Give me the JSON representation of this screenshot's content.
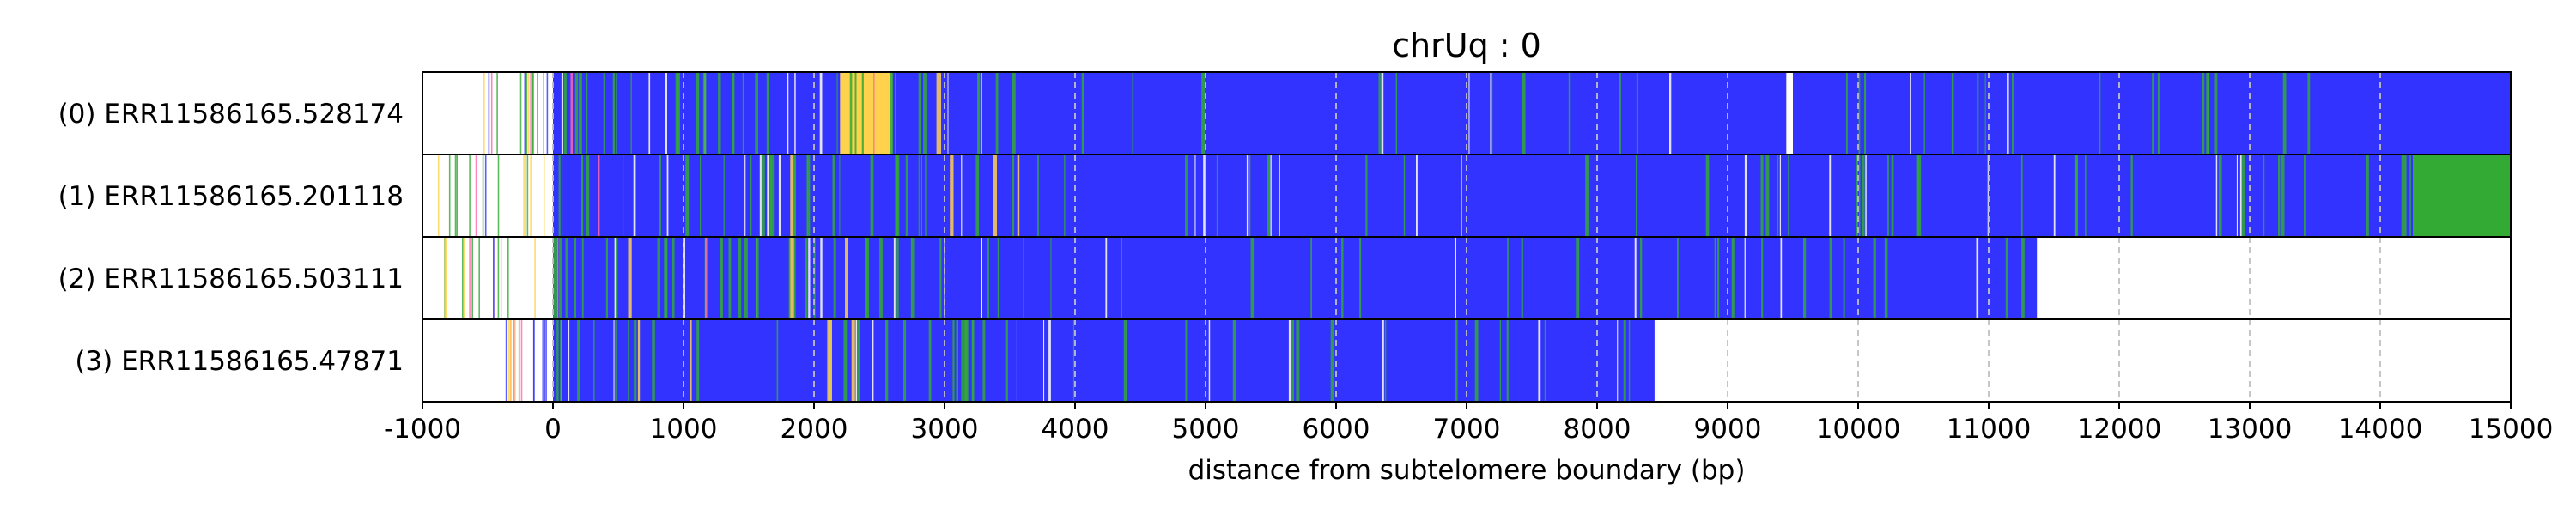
{
  "chart_data": {
    "type": "heatmap",
    "title": "chrUq : 0",
    "xlabel": "distance from subtelomere boundary (bp)",
    "ylabel": "",
    "xlim": [
      -1000,
      15000
    ],
    "grid": "vertical dashed lines at each x tick",
    "x_ticks": [
      -1000,
      0,
      1000,
      2000,
      3000,
      4000,
      5000,
      6000,
      7000,
      8000,
      9000,
      10000,
      11000,
      12000,
      13000,
      14000,
      15000
    ],
    "x_tick_labels": [
      "-1000",
      "0",
      "1000",
      "2000",
      "3000",
      "4000",
      "5000",
      "6000",
      "7000",
      "8000",
      "9000",
      "10000",
      "11000",
      "12000",
      "13000",
      "14000",
      "15000"
    ],
    "colors": {
      "telomeric_repeat": "#3333ff",
      "variant_repeat": "#33aa33",
      "other_sequence": "#ffd24d",
      "mismatch": "#ff66aa",
      "gap": "#ffffff"
    },
    "reads": [
      {
        "label": "(0) ERR11586165.528174",
        "start": -600,
        "end": 15000,
        "blocks": [
          {
            "from": -600,
            "to": 0,
            "color": "sparse"
          },
          {
            "from": 0,
            "to": 1000,
            "color": "#3333ff"
          },
          {
            "from": 1000,
            "to": 2200,
            "color": "#3333ff"
          },
          {
            "from": 2200,
            "to": 2600,
            "color": "#ffd24d"
          },
          {
            "from": 2600,
            "to": 9450,
            "color": "#3333ff"
          },
          {
            "from": 9450,
            "to": 9500,
            "color": "#ffffff"
          },
          {
            "from": 9500,
            "to": 15000,
            "color": "#3333ff"
          }
        ]
      },
      {
        "label": "(1) ERR11586165.201118",
        "start": -900,
        "end": 15000,
        "blocks": [
          {
            "from": -900,
            "to": 0,
            "color": "sparse"
          },
          {
            "from": 0,
            "to": 3500,
            "color": "#3333ff"
          },
          {
            "from": 3500,
            "to": 14250,
            "color": "#3333ff"
          },
          {
            "from": 14250,
            "to": 15000,
            "color": "#33aa33"
          }
        ]
      },
      {
        "label": "(2) ERR11586165.503111",
        "start": -900,
        "end": 11370,
        "blocks": [
          {
            "from": -900,
            "to": 0,
            "color": "sparse"
          },
          {
            "from": 0,
            "to": 3600,
            "color": "#3333ff"
          },
          {
            "from": 3600,
            "to": 11370,
            "color": "#3333ff"
          }
        ]
      },
      {
        "label": "(3) ERR11586165.47871",
        "start": -500,
        "end": 8440,
        "blocks": [
          {
            "from": -500,
            "to": 0,
            "color": "sparse"
          },
          {
            "from": 0,
            "to": 3550,
            "color": "#3333ff"
          },
          {
            "from": 3550,
            "to": 8440,
            "color": "#3333ff"
          }
        ]
      }
    ]
  }
}
